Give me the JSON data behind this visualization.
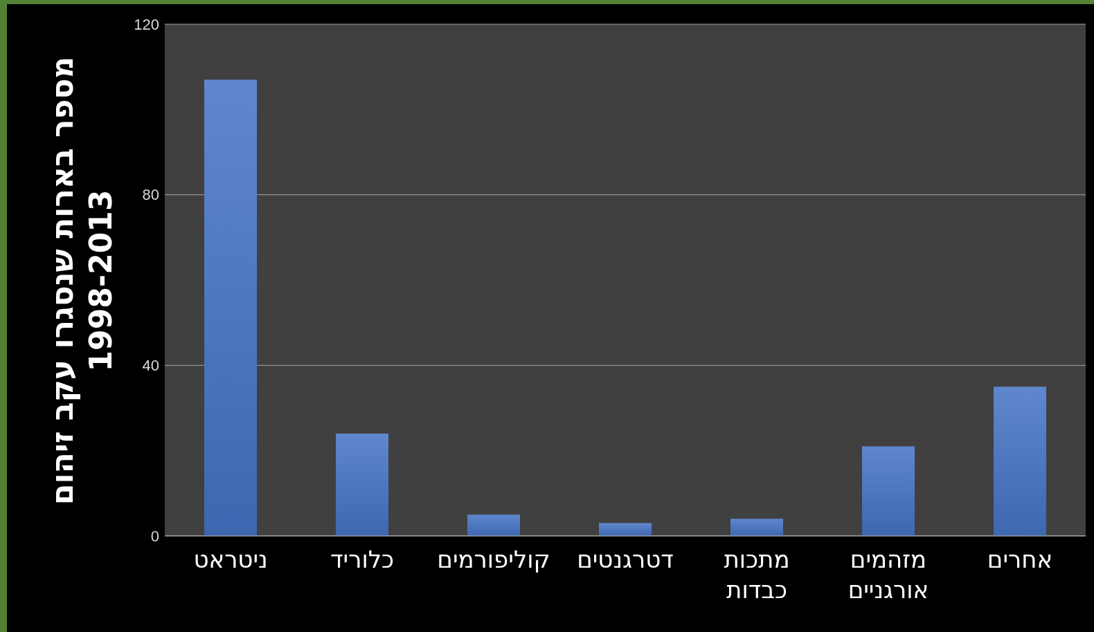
{
  "chart_data": {
    "type": "bar",
    "ylabel": "מספר בארות שנסגרו עקב זיהום\n1998-2013",
    "categories": [
      "ניטראט",
      "כלוריד",
      "קוליפורמים",
      "דטרגנטים",
      "מתכות כבדות",
      "מזהמים אורגניים",
      "אחרים"
    ],
    "values": [
      107,
      24,
      5,
      3,
      4,
      21,
      35
    ],
    "color": "#4472c4",
    "ylim": [
      0,
      120
    ],
    "yticks": [
      0,
      40,
      80,
      120
    ],
    "grid": "y"
  }
}
